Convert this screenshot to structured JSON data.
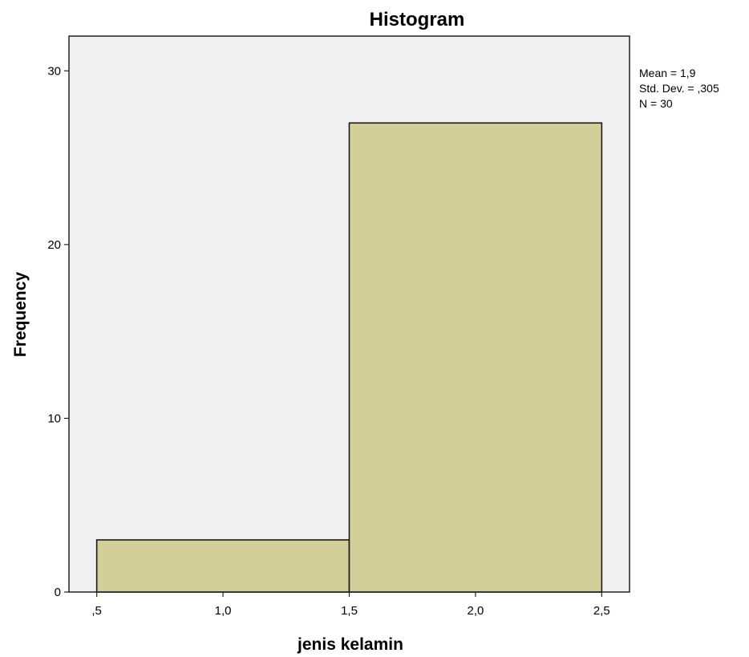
{
  "chart_data": {
    "type": "bar",
    "title": "Histogram",
    "xlabel": "jenis kelamin",
    "ylabel": "Frequency",
    "bins": [
      {
        "start": 0.5,
        "end": 1.5,
        "count": 3
      },
      {
        "start": 1.5,
        "end": 2.5,
        "count": 27
      }
    ],
    "xlim": [
      0.39,
      2.61
    ],
    "ylim": [
      0,
      32
    ],
    "x_ticks": [
      {
        "value": 0.5,
        "label": ",5"
      },
      {
        "value": 1.0,
        "label": "1,0"
      },
      {
        "value": 1.5,
        "label": "1,5"
      },
      {
        "value": 2.0,
        "label": "2,0"
      },
      {
        "value": 2.5,
        "label": "2,5"
      }
    ],
    "y_ticks": [
      {
        "value": 0,
        "label": "0"
      },
      {
        "value": 10,
        "label": "10"
      },
      {
        "value": 20,
        "label": "20"
      },
      {
        "value": 30,
        "label": "30"
      }
    ],
    "stats": {
      "mean": "Mean = 1,9",
      "std_dev": "Std. Dev. = ,305",
      "n": "N = 30"
    },
    "grid": false,
    "colors": {
      "bar_fill": "#d3cf98",
      "bar_stroke": "#1a1a1a",
      "plot_background": "#f0f0f0",
      "frame": "#222222"
    }
  }
}
